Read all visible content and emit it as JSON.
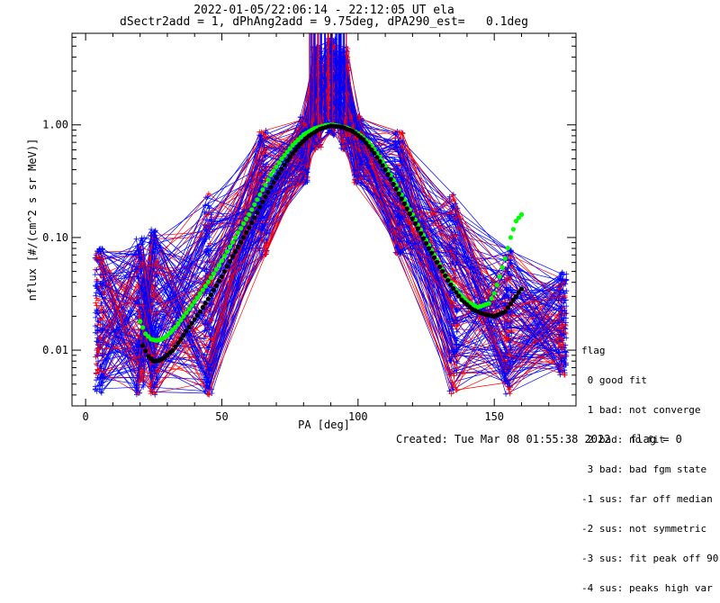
{
  "header": {
    "title_line1": "2022-01-05/22:06:14 - 22:12:05 UT ela",
    "title_line2": "dSectr2add = 1, dPhAng2add = 9.75deg, dPA290_est=   0.1deg"
  },
  "footer": {
    "created": "Created: Tue Mar 08 01:55:38 2022",
    "flag": "flag = 0"
  },
  "legend": {
    "title": "flag",
    "entries": [
      " 0 good fit",
      " 1 bad: not converge",
      " 2 bad: no fit",
      " 3 bad: bad fgm state",
      "-1 sus: far off median",
      "-2 sus: not symmetric",
      "-3 sus: fit peak off 90",
      "-4 sus: peaks high var"
    ]
  },
  "colors": {
    "blue": "#0000ff",
    "red": "#ff0000",
    "green": "#00ff00",
    "black": "#000000"
  },
  "chart_data": {
    "type": "line",
    "xlabel": "PA [deg]",
    "ylabel": "nflux [#/(cm^2 s sr MeV)]",
    "xlim": [
      -5,
      180
    ],
    "ylim": [
      0.0032,
      6.5
    ],
    "yscale": "log",
    "x_ticks": [
      0,
      50,
      100,
      150
    ],
    "x_tick_labels": [
      "0",
      "50",
      "100",
      "150"
    ],
    "y_ticks": [
      0.01,
      0.1,
      1.0
    ],
    "y_tick_labels": [
      "0.01",
      "0.10",
      "1.00"
    ],
    "series": [
      {
        "color": "green",
        "marker": "circle",
        "x": [
          20,
          22,
          24,
          26,
          28,
          30,
          33,
          36,
          40,
          44,
          48,
          52,
          56,
          60,
          64,
          68,
          72,
          76,
          80,
          84,
          88,
          90,
          92,
          96,
          100,
          104,
          108,
          112,
          116,
          120,
          124,
          128,
          132,
          136,
          140,
          144,
          148,
          150,
          152,
          154,
          156,
          158,
          160
        ],
        "y": [
          0.018,
          0.014,
          0.0125,
          0.0122,
          0.0125,
          0.0135,
          0.016,
          0.02,
          0.027,
          0.037,
          0.052,
          0.075,
          0.11,
          0.16,
          0.24,
          0.36,
          0.5,
          0.66,
          0.82,
          0.93,
          0.99,
          1.0,
          0.99,
          0.94,
          0.84,
          0.7,
          0.52,
          0.36,
          0.24,
          0.16,
          0.105,
          0.07,
          0.047,
          0.034,
          0.027,
          0.024,
          0.026,
          0.032,
          0.045,
          0.065,
          0.1,
          0.14,
          0.16
        ]
      },
      {
        "color": "black",
        "marker": "circle",
        "x": [
          21,
          23,
          25,
          27,
          29,
          32,
          35,
          38,
          42,
          46,
          50,
          54,
          58,
          62,
          66,
          70,
          74,
          78,
          82,
          86,
          90,
          94,
          98,
          102,
          106,
          110,
          114,
          118,
          122,
          126,
          130,
          134,
          138,
          142,
          146,
          150,
          154,
          157,
          160
        ],
        "y": [
          0.011,
          0.0088,
          0.008,
          0.0081,
          0.0086,
          0.01,
          0.0125,
          0.016,
          0.022,
          0.031,
          0.045,
          0.068,
          0.1,
          0.15,
          0.23,
          0.34,
          0.48,
          0.64,
          0.8,
          0.92,
          0.98,
          0.96,
          0.88,
          0.74,
          0.56,
          0.4,
          0.27,
          0.18,
          0.12,
          0.08,
          0.055,
          0.038,
          0.028,
          0.023,
          0.021,
          0.02,
          0.022,
          0.028,
          0.035
        ]
      }
    ],
    "spaghetti_colors": [
      "blue",
      "red"
    ],
    "sample_pa": [
      5,
      20,
      25,
      45,
      65,
      80,
      85,
      90,
      95,
      100,
      115,
      135,
      155,
      175
    ],
    "sample_ymin": [
      0.004,
      0.004,
      0.004,
      0.004,
      0.07,
      0.3,
      0.6,
      0.8,
      0.6,
      0.3,
      0.07,
      0.004,
      0.004,
      0.006
    ],
    "sample_ymax": [
      0.08,
      0.1,
      0.12,
      0.25,
      0.9,
      1.2,
      5,
      6,
      5,
      1.2,
      0.9,
      0.25,
      0.08,
      0.05
    ]
  }
}
